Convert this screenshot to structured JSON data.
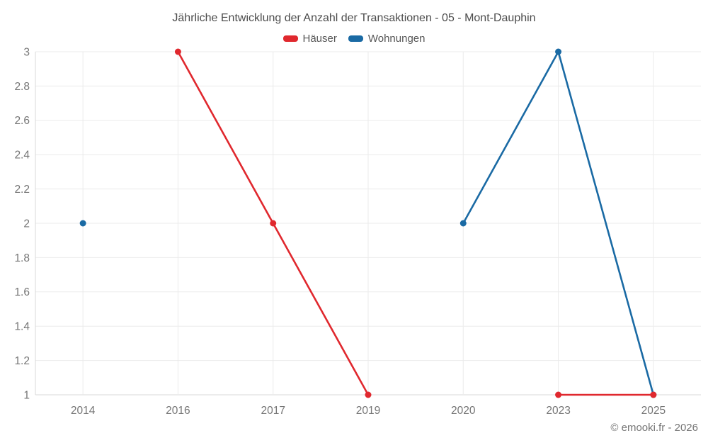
{
  "title": "Jährliche Entwicklung der Anzahl der Transaktionen - 05 - Mont-Dauphin",
  "watermark": "© emooki.fr - 2026",
  "colors": {
    "haeuser": "#e0282e",
    "wohnungen": "#1a6aa4",
    "grid": "#ebebeb",
    "axis": "#d9d9d9",
    "tick_text": "#757575",
    "title_text": "#4c4c4c",
    "legend_text": "#565656"
  },
  "chart_data": {
    "type": "line",
    "title": "Jährliche Entwicklung der Anzahl der Transaktionen - 05 - Mont-Dauphin",
    "categories": [
      "2014",
      "2016",
      "2017",
      "2019",
      "2020",
      "2023",
      "2025"
    ],
    "series": [
      {
        "id": "haeuser",
        "name": "Häuser",
        "color": "#e0282e",
        "values": [
          null,
          3,
          2,
          1,
          null,
          1,
          1
        ]
      },
      {
        "id": "wohnungen",
        "name": "Wohnungen",
        "color": "#1a6aa4",
        "values": [
          2,
          null,
          null,
          null,
          2,
          3,
          1
        ]
      }
    ],
    "xlabel": "",
    "ylabel": "",
    "ylim": [
      1,
      3
    ],
    "yticks": [
      "1",
      "1.2",
      "1.4",
      "1.6",
      "1.8",
      "2",
      "2.2",
      "2.4",
      "2.6",
      "2.8",
      "3"
    ],
    "grid": true,
    "legend_position": "top",
    "marker_radius": 4.5,
    "line_width": 2.6
  }
}
